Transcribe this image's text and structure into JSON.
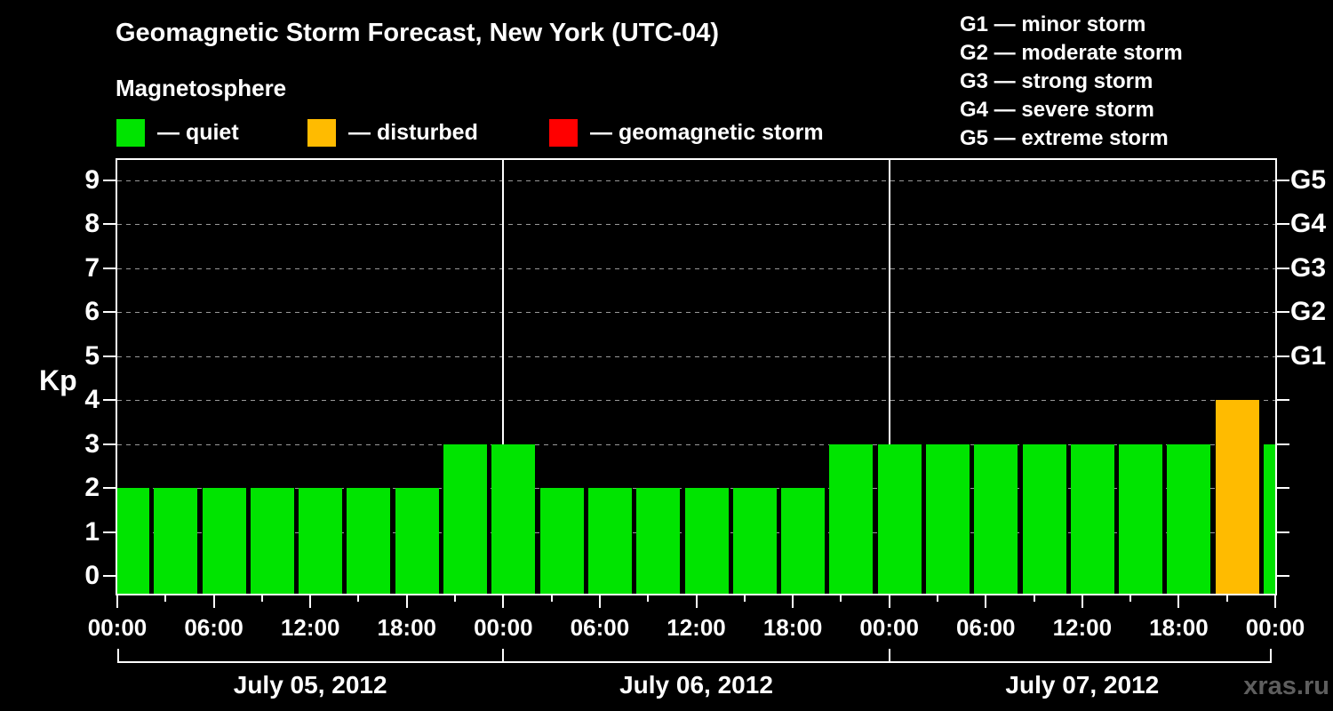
{
  "header": {
    "title": "Geomagnetic Storm Forecast, New York (UTC-04)",
    "subtitle": "Magnetosphere"
  },
  "legend": {
    "items": [
      {
        "label": "— quiet",
        "color": "#00e400"
      },
      {
        "label": "— disturbed",
        "color": "#ffbb00"
      },
      {
        "label": "— geomagnetic storm",
        "color": "#ff0000"
      }
    ]
  },
  "g_scale_legend": {
    "items": [
      "G1 — minor storm",
      "G2 — moderate storm",
      "G3 — strong storm",
      "G4 — severe storm",
      "G5 — extreme storm"
    ]
  },
  "watermark": "xras.ru",
  "chart_data": {
    "type": "bar",
    "title": "Geomagnetic Storm Forecast, New York (UTC-04)",
    "ylabel": "Kp",
    "ylim": [
      0,
      9.5
    ],
    "y_ticks": [
      "0",
      "1",
      "2",
      "3",
      "4",
      "5",
      "6",
      "7",
      "8",
      "9"
    ],
    "x_tick_labels": [
      "00:00",
      "06:00",
      "12:00",
      "18:00",
      "00:00",
      "06:00",
      "12:00",
      "18:00",
      "00:00",
      "06:00",
      "12:00",
      "18:00",
      "00:00"
    ],
    "interval_hours": 3,
    "grid": "dashed horizontal at each Kp level",
    "days": [
      {
        "date": "July 05, 2012",
        "values": [
          2,
          2,
          2,
          2,
          2,
          2,
          2,
          3
        ]
      },
      {
        "date": "July 06, 2012",
        "values": [
          3,
          2,
          2,
          2,
          2,
          2,
          2,
          3
        ]
      },
      {
        "date": "July 07, 2012",
        "values": [
          3,
          3,
          3,
          3,
          3,
          3,
          3,
          4
        ]
      }
    ],
    "next_interval_value": 3,
    "color_rules": {
      "quiet_max_kp": 3,
      "disturbed_max_kp": 4
    },
    "colors": {
      "quiet": "#00e400",
      "disturbed": "#ffbb00",
      "storm": "#ff0000"
    },
    "right_axis": [
      {
        "kp": 5,
        "label": "G1"
      },
      {
        "kp": 6,
        "label": "G2"
      },
      {
        "kp": 7,
        "label": "G3"
      },
      {
        "kp": 8,
        "label": "G4"
      },
      {
        "kp": 9,
        "label": "G5"
      }
    ]
  }
}
